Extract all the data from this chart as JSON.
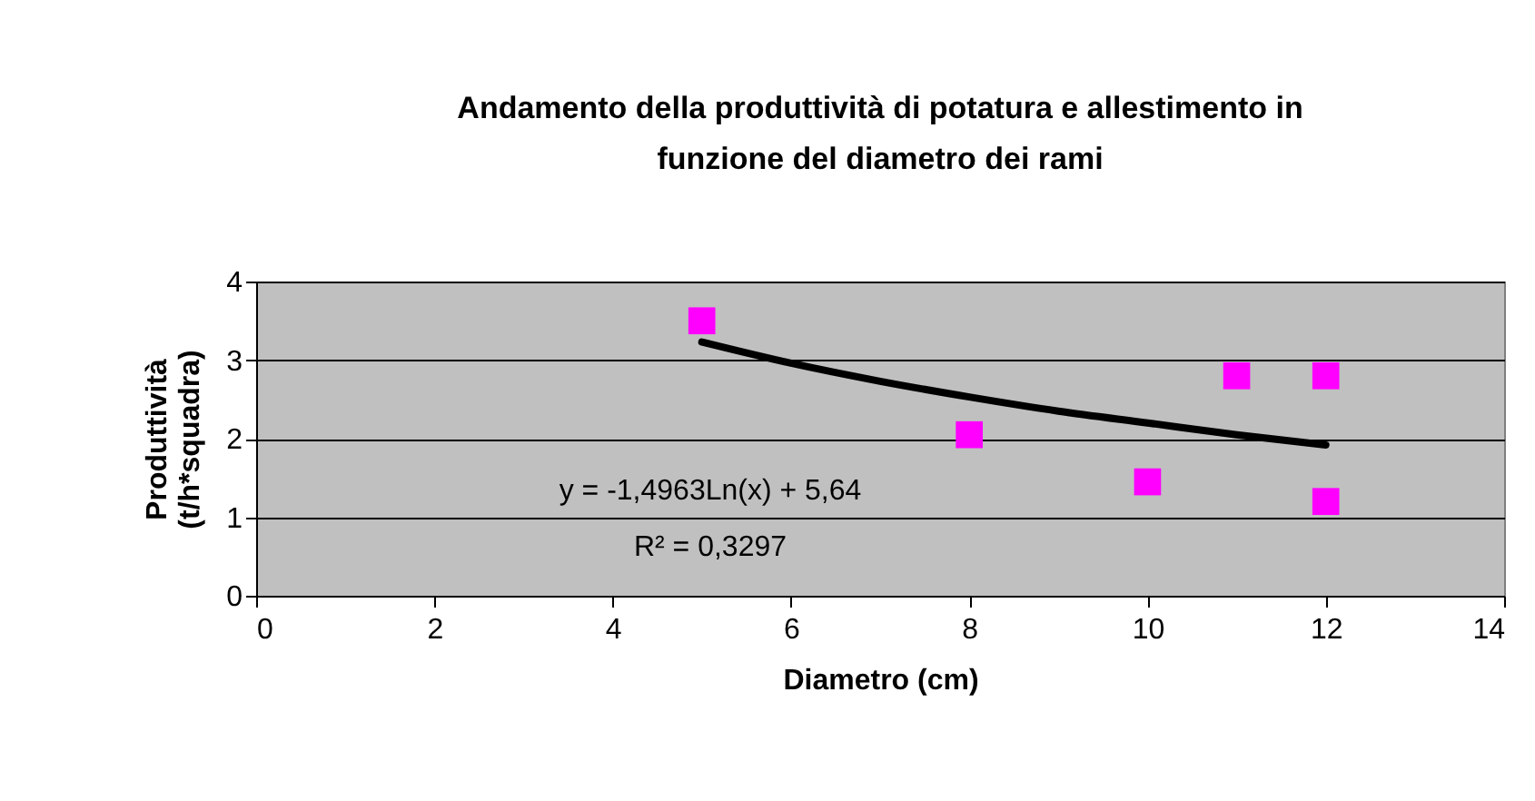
{
  "chart_data": {
    "type": "scatter",
    "title": "Andamento della produttività di potatura e allestimento in funzione del diametro dei rami",
    "xlabel": "Diametro (cm)",
    "ylabel": "Produttività\n(t/h*squadra)",
    "xlim": [
      0,
      14
    ],
    "xticks": [
      0,
      2,
      4,
      6,
      8,
      10,
      12,
      14
    ],
    "ylim": [
      0,
      4
    ],
    "yticks": [
      0,
      1,
      2,
      3,
      4
    ],
    "grid": "y",
    "series": [
      {
        "marker": "square",
        "color": "#ff00ff",
        "x": [
          5,
          8,
          10,
          11,
          12,
          12
        ],
        "values": [
          3.5,
          2.05,
          1.45,
          2.8,
          2.8,
          1.2
        ]
      },
      {
        "type": "line",
        "marker": "none",
        "color": "#000000",
        "line_style": "solid",
        "x": [
          5,
          6,
          7,
          8,
          9,
          10,
          11,
          12
        ],
        "values": [
          3.23,
          2.96,
          2.73,
          2.53,
          2.35,
          2.2,
          2.05,
          1.92
        ]
      }
    ],
    "annotations": [
      "y = -1,4963Ln(x) + 5,64",
      "R² = 0,3297"
    ]
  }
}
